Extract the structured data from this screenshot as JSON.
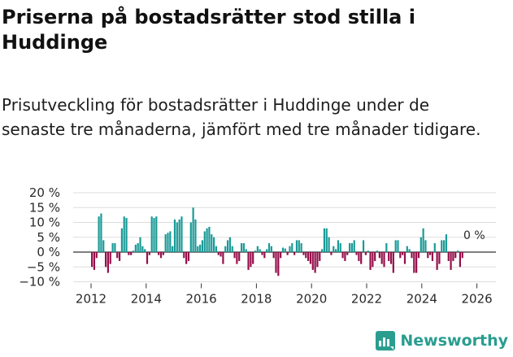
{
  "title": "Priserna på bostadsrätter stod stilla i Huddinge",
  "subtitle": "Prisutveckling för bostadsrätter i Huddinge under de senaste tre månaderna, jämfört med tre månader tidigare.",
  "brand": "Newsworthy",
  "colors": {
    "positive": "#1a9a97",
    "negative": "#950f4b",
    "grid": "#dddddd",
    "brand": "#2a9d8f"
  },
  "chart_data": {
    "type": "bar",
    "title": "",
    "xlabel": "",
    "ylabel": "",
    "ylim": [
      -10,
      20
    ],
    "y_ticks": [
      -10,
      -5,
      0,
      5,
      10,
      15,
      20
    ],
    "y_tick_labels": [
      "−10 %",
      "−5 %",
      "0 %",
      "5 %",
      "10 %",
      "15 %",
      "20 %"
    ],
    "x_ticks": [
      2012,
      2014,
      2016,
      2018,
      2020,
      2022,
      2024,
      2026
    ],
    "x_tick_labels": [
      "2012",
      "2014",
      "2016",
      "2018",
      "2020",
      "2022",
      "2024",
      "2026"
    ],
    "annotation": "0 %",
    "x_start": 2012,
    "x_step_years": 0.08333,
    "series": [
      {
        "name": "Prisutveckling",
        "values": [
          -5,
          -6,
          -2,
          12,
          13,
          4,
          -5,
          -7,
          -4,
          3,
          3,
          -2,
          -3,
          8,
          12,
          11.5,
          -1,
          -1,
          0.5,
          2.5,
          3,
          5,
          2,
          1,
          -4,
          -1,
          12,
          11.5,
          12,
          -1,
          -2,
          -1,
          6,
          6.5,
          7,
          2,
          11,
          10,
          11,
          12,
          -2,
          -4,
          -3,
          10,
          15,
          11,
          2,
          2.5,
          4,
          7,
          8,
          8.5,
          6,
          5,
          2,
          -1,
          -1.5,
          -4,
          2,
          4,
          5,
          2,
          -2,
          -4,
          -3,
          3,
          3,
          1,
          -6,
          -5,
          -4,
          0.5,
          2,
          1,
          -1,
          -2,
          1,
          3,
          2,
          -2,
          -7,
          -8,
          -2,
          1.5,
          1.2,
          -1,
          2,
          3,
          -1,
          4,
          4,
          3,
          -1,
          -2,
          -3,
          -4,
          -6,
          -7,
          -5,
          -3,
          1,
          8,
          8,
          5,
          -1,
          2,
          1,
          4,
          3,
          -2,
          -3,
          -1,
          3,
          3,
          4,
          -1,
          -3,
          -4,
          4,
          -1,
          0.5,
          -6,
          -5,
          -3,
          0.5,
          -2,
          -4,
          -5,
          3,
          -3,
          -4,
          -7,
          4,
          4,
          -2,
          -1,
          -4,
          2,
          1,
          -2,
          -7,
          -7,
          -2,
          5,
          8,
          4,
          -2,
          -1,
          -3,
          3,
          -6,
          -4,
          4,
          4,
          6,
          -3,
          -6,
          -3,
          -2,
          0.5,
          -5,
          -2
        ]
      }
    ]
  }
}
